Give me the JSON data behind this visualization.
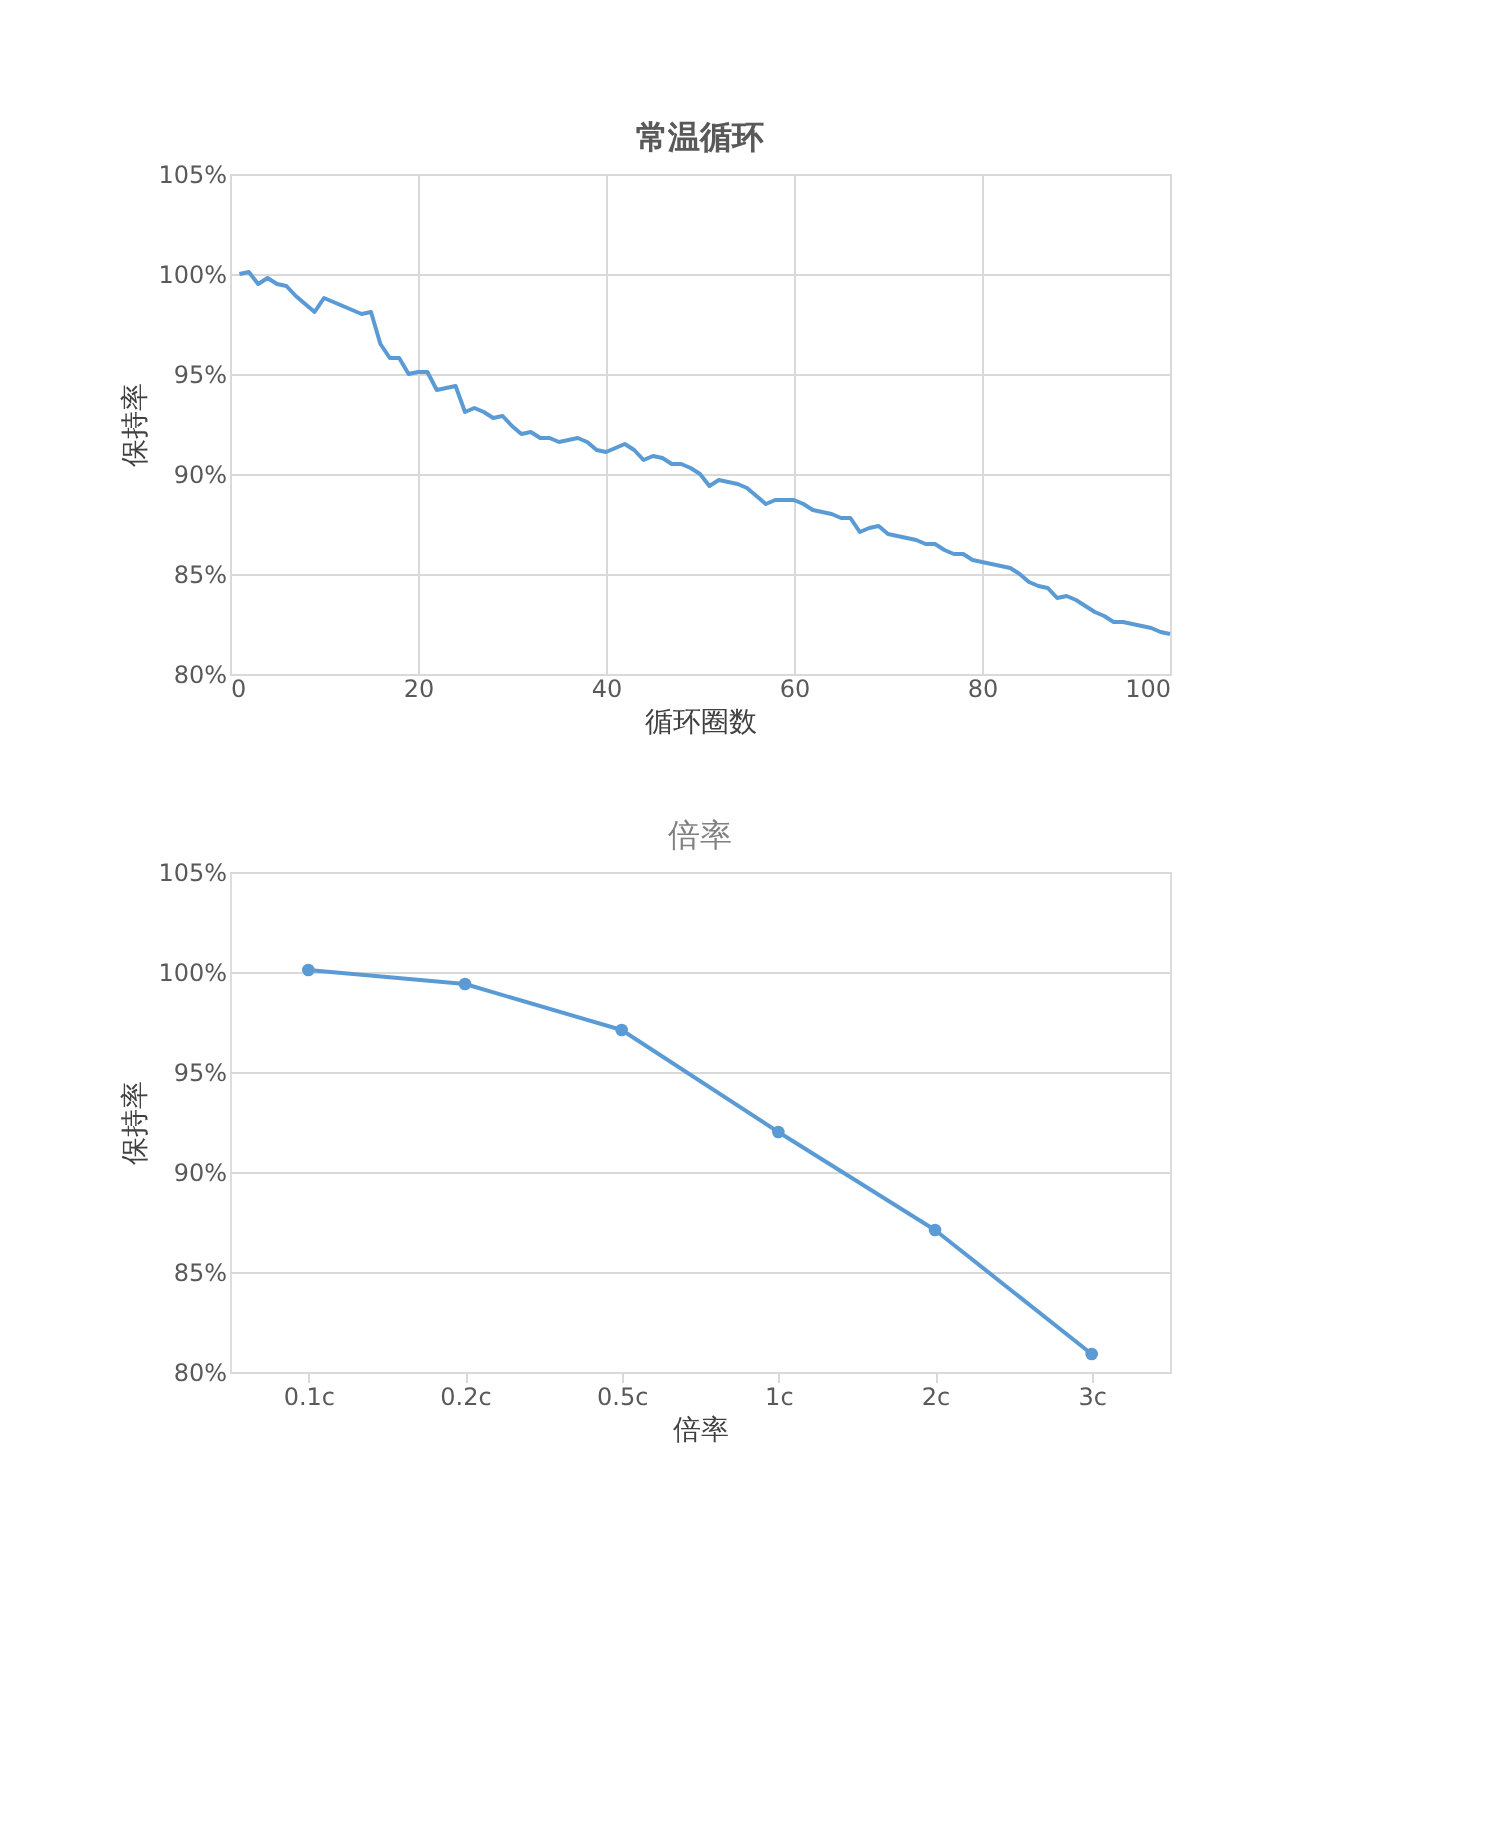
{
  "chart_data": [
    {
      "type": "line",
      "title": "常温循环",
      "xlabel": "循环圈数",
      "ylabel": "保持率",
      "x": [
        1,
        2,
        3,
        4,
        5,
        6,
        7,
        8,
        9,
        10,
        11,
        12,
        13,
        14,
        15,
        16,
        17,
        18,
        19,
        20,
        21,
        22,
        23,
        24,
        25,
        26,
        27,
        28,
        29,
        30,
        31,
        32,
        33,
        34,
        35,
        36,
        37,
        38,
        39,
        40,
        41,
        42,
        43,
        44,
        45,
        46,
        47,
        48,
        49,
        50,
        51,
        52,
        53,
        54,
        55,
        56,
        57,
        58,
        59,
        60,
        61,
        62,
        63,
        64,
        65,
        66,
        67,
        68,
        69,
        70,
        71,
        72,
        73,
        74,
        75,
        76,
        77,
        78,
        79,
        80,
        81,
        82,
        83,
        84,
        85,
        86,
        87,
        88,
        89,
        90,
        91,
        92,
        93,
        94,
        95,
        96,
        97,
        98,
        99,
        100
      ],
      "series": [
        {
          "color": "#5b9bd5",
          "values": [
            100.0,
            100.1,
            99.5,
            99.8,
            99.5,
            99.4,
            98.9,
            98.5,
            98.1,
            98.8,
            98.6,
            98.4,
            98.2,
            98.0,
            98.1,
            96.5,
            95.8,
            95.8,
            95.0,
            95.1,
            95.1,
            94.2,
            94.3,
            94.4,
            93.1,
            93.3,
            93.1,
            92.8,
            92.9,
            92.4,
            92.0,
            92.1,
            91.8,
            91.8,
            91.6,
            91.7,
            91.8,
            91.6,
            91.2,
            91.1,
            91.3,
            91.5,
            91.2,
            90.7,
            90.9,
            90.8,
            90.5,
            90.5,
            90.3,
            90.0,
            89.4,
            89.7,
            89.6,
            89.5,
            89.3,
            88.9,
            88.5,
            88.7,
            88.7,
            88.7,
            88.5,
            88.2,
            88.1,
            88.0,
            87.8,
            87.8,
            87.1,
            87.3,
            87.4,
            87.0,
            86.9,
            86.8,
            86.7,
            86.5,
            86.5,
            86.2,
            86.0,
            86.0,
            85.7,
            85.6,
            85.5,
            85.4,
            85.3,
            85.0,
            84.6,
            84.4,
            84.3,
            83.8,
            83.9,
            83.7,
            83.4,
            83.1,
            82.9,
            82.6,
            82.6,
            82.5,
            82.4,
            82.3,
            82.1,
            82.0
          ]
        }
      ],
      "xlim": [
        0,
        100
      ],
      "xticks": [
        0,
        20,
        40,
        60,
        80,
        100
      ],
      "ylim": [
        80,
        105
      ],
      "yticks": [
        {
          "value": 80,
          "label": "80%"
        },
        {
          "value": 85,
          "label": "85%"
        },
        {
          "value": 90,
          "label": "90%"
        },
        {
          "value": 95,
          "label": "95%"
        },
        {
          "value": 100,
          "label": "100%"
        },
        {
          "value": 105,
          "label": "105%"
        }
      ],
      "grid": true,
      "marker": "none",
      "line_style": "solid"
    },
    {
      "type": "line",
      "title": "倍率",
      "xlabel": "倍率",
      "ylabel": "保持率",
      "categories": [
        "0.1c",
        "0.2c",
        "0.5c",
        "1c",
        "2c",
        "3c"
      ],
      "series": [
        {
          "color": "#5b9bd5",
          "values": [
            100.1,
            99.4,
            97.1,
            92.0,
            87.1,
            80.9
          ]
        }
      ],
      "ylim": [
        80,
        105
      ],
      "yticks": [
        {
          "value": 80,
          "label": "80%"
        },
        {
          "value": 85,
          "label": "85%"
        },
        {
          "value": 90,
          "label": "90%"
        },
        {
          "value": 95,
          "label": "95%"
        },
        {
          "value": 100,
          "label": "100%"
        },
        {
          "value": 105,
          "label": "105%"
        }
      ],
      "grid": "y",
      "marker": "circle",
      "line_style": "solid"
    }
  ]
}
